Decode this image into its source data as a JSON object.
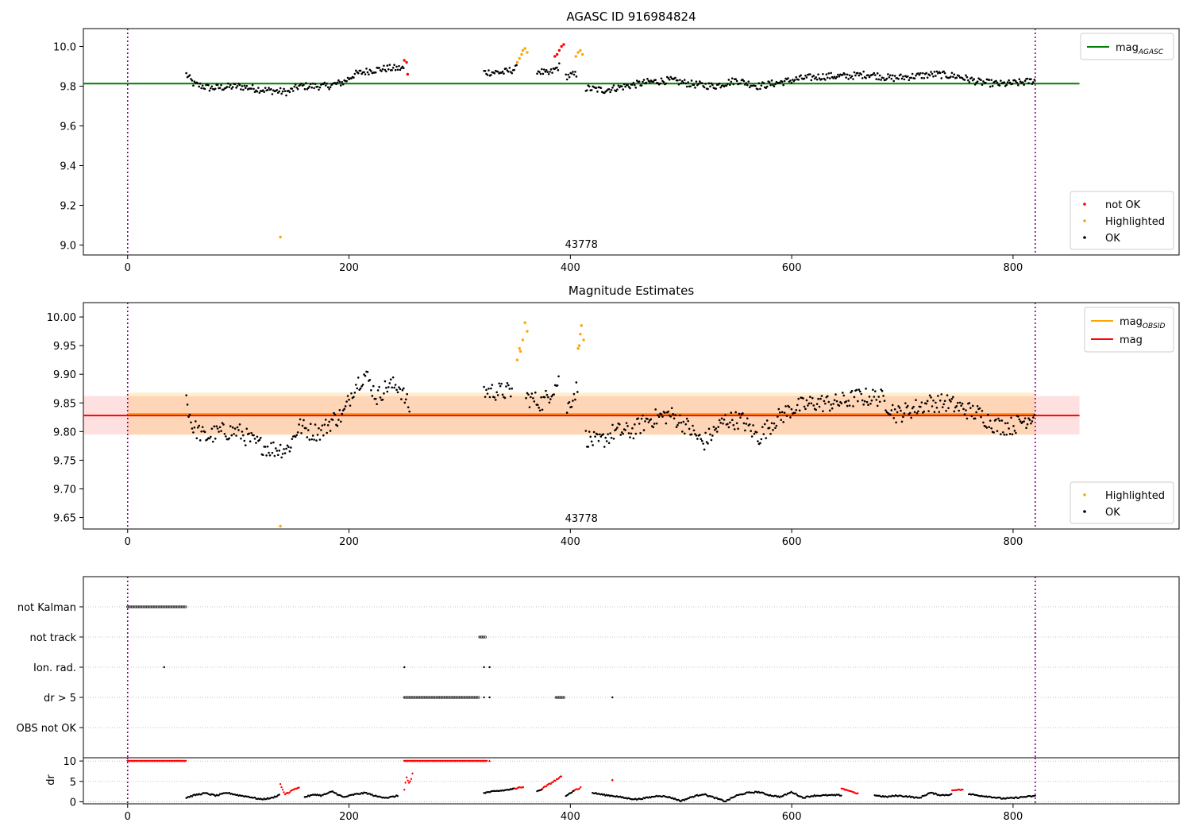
{
  "chart_data": [
    {
      "type": "scatter",
      "title": "AGASC ID 916984824",
      "xlim": [
        -40,
        950
      ],
      "ylim": [
        8.95,
        10.09
      ],
      "x_ticks": [
        0,
        200,
        400,
        600,
        800
      ],
      "y_ticks": [
        9.0,
        9.2,
        9.4,
        9.6,
        9.8,
        10.0
      ],
      "vlines": [
        0,
        820
      ],
      "obsid_label": {
        "text": "43778",
        "x": 410
      },
      "mag_agasc": 9.813,
      "legend_lines": [
        {
          "name": "mag",
          "sub": "AGASC",
          "color": "#008000"
        }
      ],
      "legend_points": [
        {
          "name": "not OK",
          "color": "#ff0000"
        },
        {
          "name": "Highlighted",
          "color": "#ffa500"
        },
        {
          "name": "OK",
          "color": "#000000"
        }
      ],
      "legend_lines_position": "upper-right",
      "legend_points_position": "lower-right",
      "segments": [
        [
          [
            53,
            9.86
          ],
          [
            60,
            9.81
          ],
          [
            75,
            9.79
          ],
          [
            100,
            9.8
          ],
          [
            125,
            9.78
          ],
          [
            145,
            9.77
          ],
          [
            155,
            9.8
          ],
          [
            180,
            9.8
          ],
          [
            195,
            9.82
          ],
          [
            205,
            9.86
          ],
          [
            220,
            9.88
          ],
          [
            235,
            9.89
          ],
          [
            250,
            9.89
          ]
        ],
        [
          [
            322,
            9.87
          ],
          [
            340,
            9.87
          ],
          [
            352,
            9.89
          ]
        ],
        [
          [
            370,
            9.88
          ],
          [
            380,
            9.86
          ],
          [
            390,
            9.9
          ]
        ],
        [
          [
            396,
            9.85
          ],
          [
            406,
            9.86
          ]
        ],
        [
          [
            414,
            9.79
          ],
          [
            430,
            9.78
          ],
          [
            450,
            9.8
          ],
          [
            470,
            9.82
          ],
          [
            490,
            9.83
          ],
          [
            510,
            9.81
          ],
          [
            530,
            9.8
          ],
          [
            550,
            9.83
          ],
          [
            570,
            9.8
          ],
          [
            590,
            9.82
          ],
          [
            610,
            9.84
          ],
          [
            630,
            9.85
          ],
          [
            650,
            9.85
          ],
          [
            670,
            9.86
          ],
          [
            690,
            9.84
          ],
          [
            710,
            9.85
          ],
          [
            730,
            9.86
          ],
          [
            750,
            9.85
          ],
          [
            770,
            9.82
          ],
          [
            790,
            9.81
          ],
          [
            810,
            9.82
          ],
          [
            820,
            9.83
          ]
        ]
      ],
      "highlighted_points": [
        [
          138,
          9.04
        ],
        [
          352,
          9.92
        ],
        [
          354,
          9.94
        ],
        [
          356,
          9.96
        ],
        [
          357,
          9.98
        ],
        [
          359,
          9.99
        ],
        [
          361,
          9.97
        ],
        [
          405,
          9.95
        ],
        [
          407,
          9.97
        ],
        [
          409,
          9.98
        ],
        [
          411,
          9.96
        ]
      ],
      "notok_points": [
        [
          250,
          9.93
        ],
        [
          252,
          9.92
        ],
        [
          253,
          9.86
        ],
        [
          388,
          9.96
        ],
        [
          390,
          9.98
        ],
        [
          392,
          10.0
        ],
        [
          394,
          10.01
        ],
        [
          386,
          9.95
        ]
      ]
    },
    {
      "type": "scatter",
      "title": "Magnitude Estimates",
      "xlim": [
        -40,
        950
      ],
      "ylim": [
        9.63,
        10.025
      ],
      "x_ticks": [
        0,
        200,
        400,
        600,
        800
      ],
      "y_ticks": [
        9.65,
        9.7,
        9.75,
        9.8,
        9.85,
        9.9,
        9.95,
        10.0
      ],
      "vlines": [
        0,
        820
      ],
      "obsid_label": {
        "text": "43778",
        "x": 410
      },
      "mag": 9.828,
      "mag_band": [
        9.795,
        9.862
      ],
      "mag_obsid": 9.831,
      "mag_obsid_band": [
        9.794,
        9.868
      ],
      "legend_lines": [
        {
          "name": "mag",
          "sub": "OBSID",
          "color": "#ffa500"
        },
        {
          "name": "mag",
          "sub": "",
          "color": "#ff0000"
        }
      ],
      "legend_points": [
        {
          "name": "Highlighted",
          "color": "#ffa500"
        },
        {
          "name": "OK",
          "color": "#000000"
        }
      ],
      "legend_lines_position": "upper-right",
      "legend_points_position": "lower-right",
      "segments": [
        [
          [
            53,
            9.86
          ],
          [
            58,
            9.81
          ],
          [
            70,
            9.79
          ],
          [
            85,
            9.8
          ],
          [
            100,
            9.8
          ],
          [
            115,
            9.78
          ],
          [
            130,
            9.77
          ],
          [
            145,
            9.77
          ],
          [
            155,
            9.81
          ],
          [
            165,
            9.8
          ],
          [
            175,
            9.8
          ],
          [
            185,
            9.82
          ],
          [
            195,
            9.83
          ],
          [
            205,
            9.88
          ],
          [
            215,
            9.9
          ],
          [
            225,
            9.86
          ],
          [
            235,
            9.88
          ],
          [
            245,
            9.88
          ],
          [
            255,
            9.84
          ]
        ],
        [
          [
            322,
            9.87
          ],
          [
            335,
            9.87
          ],
          [
            348,
            9.87
          ]
        ],
        [
          [
            360,
            9.86
          ],
          [
            375,
            9.85
          ],
          [
            390,
            9.89
          ]
        ],
        [
          [
            397,
            9.84
          ],
          [
            407,
            9.88
          ]
        ],
        [
          [
            414,
            9.79
          ],
          [
            425,
            9.78
          ],
          [
            440,
            9.8
          ],
          [
            455,
            9.8
          ],
          [
            470,
            9.82
          ],
          [
            490,
            9.83
          ],
          [
            505,
            9.81
          ],
          [
            520,
            9.78
          ],
          [
            540,
            9.82
          ],
          [
            555,
            9.82
          ],
          [
            570,
            9.79
          ],
          [
            585,
            9.82
          ],
          [
            600,
            9.84
          ],
          [
            620,
            9.85
          ],
          [
            640,
            9.85
          ],
          [
            660,
            9.86
          ],
          [
            680,
            9.86
          ],
          [
            695,
            9.83
          ],
          [
            710,
            9.84
          ],
          [
            725,
            9.85
          ],
          [
            740,
            9.85
          ],
          [
            755,
            9.84
          ],
          [
            770,
            9.83
          ],
          [
            785,
            9.81
          ],
          [
            800,
            9.81
          ],
          [
            820,
            9.83
          ]
        ]
      ],
      "highlighted_points": [
        [
          138,
          9.635
        ],
        [
          352,
          9.925
        ],
        [
          354,
          9.945
        ],
        [
          355,
          9.94
        ],
        [
          357,
          9.96
        ],
        [
          359,
          9.99
        ],
        [
          361,
          9.975
        ],
        [
          407,
          9.945
        ],
        [
          408,
          9.95
        ],
        [
          409,
          9.97
        ],
        [
          410,
          9.985
        ],
        [
          412,
          9.96
        ]
      ],
      "notok_points": []
    },
    {
      "type": "scatter",
      "title": "",
      "xlim": [
        -40,
        950
      ],
      "x_ticks": [
        0,
        200,
        400,
        600,
        800
      ],
      "vlines": [
        0,
        820
      ],
      "flag_labels": [
        "not Kalman",
        "not track",
        "Ion. rad.",
        "dr > 5",
        "OBS not OK"
      ],
      "flags": [
        {
          "ranges": [
            [
              0,
              53
            ]
          ],
          "points": []
        },
        {
          "ranges": [
            [
              318,
              324
            ]
          ],
          "points": []
        },
        {
          "ranges": [],
          "points": [
            33,
            250,
            322,
            327
          ]
        },
        {
          "ranges": [
            [
              250,
              318
            ],
            [
              387,
              395
            ]
          ],
          "points": [
            322,
            327,
            438
          ]
        },
        {
          "ranges": [],
          "points": []
        }
      ]
    },
    {
      "type": "scatter",
      "title": "",
      "ylabel": "dr",
      "xlim": [
        -40,
        950
      ],
      "ylim": [
        -0.5,
        10.8
      ],
      "x_ticks": [
        0,
        200,
        400,
        600,
        800
      ],
      "y_ticks": [
        0,
        5,
        10
      ],
      "vlines": [
        0,
        820
      ],
      "clipped_ranges": [
        [
          0,
          53
        ],
        [
          250,
          325
        ]
      ],
      "clipped_points": [
        327
      ],
      "dr_segments": [
        [
          [
            53,
            1
          ],
          [
            60,
            1.6
          ],
          [
            70,
            2.1
          ],
          [
            80,
            1.5
          ],
          [
            90,
            2.2
          ],
          [
            100,
            1.6
          ],
          [
            110,
            1.2
          ],
          [
            120,
            0.6
          ],
          [
            130,
            0.9
          ],
          [
            138,
            1.8
          ]
        ],
        [
          [
            160,
            1.2
          ],
          [
            170,
            1.8
          ],
          [
            175,
            1.5
          ],
          [
            185,
            2.5
          ],
          [
            195,
            1.1
          ],
          [
            205,
            1.8
          ],
          [
            215,
            2.2
          ],
          [
            225,
            1.3
          ],
          [
            235,
            1.0
          ],
          [
            245,
            1.5
          ]
        ],
        [
          [
            322,
            2.2
          ],
          [
            330,
            2.5
          ],
          [
            340,
            2.8
          ],
          [
            350,
            3.2
          ]
        ],
        [
          [
            370,
            2.5
          ],
          [
            375,
            3.3
          ]
        ],
        [
          [
            396,
            1.5
          ],
          [
            404,
            2.8
          ]
        ],
        [
          [
            420,
            2.2
          ],
          [
            430,
            1.7
          ],
          [
            440,
            1.4
          ],
          [
            450,
            0.9
          ],
          [
            460,
            0.6
          ],
          [
            470,
            1.0
          ],
          [
            480,
            1.5
          ],
          [
            490,
            1.1
          ],
          [
            500,
            0.2
          ],
          [
            510,
            1.2
          ],
          [
            520,
            1.9
          ],
          [
            530,
            1.0
          ],
          [
            540,
            0.1
          ],
          [
            550,
            1.5
          ],
          [
            560,
            2.2
          ],
          [
            570,
            2.4
          ],
          [
            580,
            1.6
          ],
          [
            590,
            1.2
          ],
          [
            600,
            2.4
          ],
          [
            610,
            1.0
          ],
          [
            620,
            1.5
          ],
          [
            635,
            1.6
          ],
          [
            645,
            1.6
          ]
        ],
        [
          [
            675,
            1.6
          ],
          [
            685,
            1.2
          ],
          [
            695,
            1.5
          ],
          [
            705,
            1.3
          ],
          [
            715,
            0.9
          ],
          [
            725,
            2.2
          ],
          [
            735,
            1.6
          ],
          [
            745,
            1.8
          ]
        ],
        [
          [
            760,
            1.9
          ],
          [
            770,
            1.5
          ],
          [
            780,
            1.2
          ],
          [
            790,
            0.8
          ],
          [
            800,
            0.9
          ],
          [
            810,
            1.2
          ],
          [
            820,
            1.4
          ]
        ]
      ],
      "red_segments": [
        [
          [
            138,
            4.4
          ],
          [
            139,
            3.6
          ],
          [
            142,
            1.8
          ],
          [
            145,
            2.2
          ],
          [
            150,
            3.0
          ],
          [
            155,
            3.6
          ]
        ],
        [
          [
            250,
            3.0
          ],
          [
            252,
            6.0
          ],
          [
            254,
            4.5
          ],
          [
            256,
            5.2
          ],
          [
            258,
            7.8
          ]
        ],
        [
          [
            350,
            3.2
          ],
          [
            358,
            3.7
          ]
        ],
        [
          [
            375,
            3.3
          ],
          [
            385,
            5.0
          ],
          [
            392,
            6.2
          ]
        ],
        [
          [
            404,
            2.8
          ],
          [
            410,
            3.6
          ]
        ],
        [
          [
            645,
            3.3
          ],
          [
            660,
            2.0
          ]
        ],
        [
          [
            745,
            2.8
          ],
          [
            755,
            3.0
          ]
        ]
      ],
      "red_points": [
        [
          438,
          5.3
        ]
      ]
    }
  ]
}
